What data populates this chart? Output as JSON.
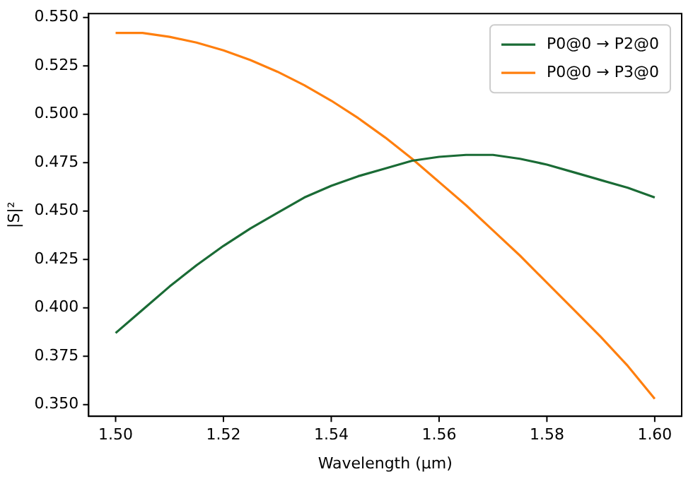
{
  "chart_data": {
    "type": "line",
    "xlabel": "Wavelength (µm)",
    "ylabel": "|S|²",
    "x": [
      1.5,
      1.505,
      1.51,
      1.515,
      1.52,
      1.525,
      1.53,
      1.535,
      1.54,
      1.545,
      1.55,
      1.555,
      1.56,
      1.565,
      1.57,
      1.575,
      1.58,
      1.585,
      1.59,
      1.595,
      1.6
    ],
    "series": [
      {
        "name": "P0@0 → P2@0",
        "color": "#1a6b35",
        "values": [
          0.387,
          0.399,
          0.411,
          0.422,
          0.432,
          0.441,
          0.449,
          0.457,
          0.463,
          0.468,
          0.472,
          0.476,
          0.478,
          0.479,
          0.479,
          0.477,
          0.474,
          0.47,
          0.466,
          0.462,
          0.457
        ]
      },
      {
        "name": "P0@0 → P3@0",
        "color": "#ff7f0e",
        "values": [
          0.542,
          0.542,
          0.54,
          0.537,
          0.533,
          0.528,
          0.522,
          0.515,
          0.507,
          0.498,
          0.488,
          0.477,
          0.465,
          0.453,
          0.44,
          0.427,
          0.413,
          0.399,
          0.385,
          0.37,
          0.353
        ]
      }
    ],
    "xlim": [
      1.495,
      1.605
    ],
    "xticks": [
      {
        "value": 1.5,
        "label": "1.50"
      },
      {
        "value": 1.52,
        "label": "1.52"
      },
      {
        "value": 1.54,
        "label": "1.54"
      },
      {
        "value": 1.56,
        "label": "1.56"
      },
      {
        "value": 1.58,
        "label": "1.58"
      },
      {
        "value": 1.6,
        "label": "1.60"
      }
    ],
    "ylim": [
      0.344,
      0.552
    ],
    "yticks": [
      {
        "value": 0.35,
        "label": "0.350"
      },
      {
        "value": 0.375,
        "label": "0.375"
      },
      {
        "value": 0.4,
        "label": "0.400"
      },
      {
        "value": 0.425,
        "label": "0.425"
      },
      {
        "value": 0.45,
        "label": "0.450"
      },
      {
        "value": 0.475,
        "label": "0.475"
      },
      {
        "value": 0.5,
        "label": "0.500"
      },
      {
        "value": 0.525,
        "label": "0.525"
      },
      {
        "value": 0.55,
        "label": "0.550"
      }
    ],
    "grid": false,
    "legend": "top right",
    "marker": "none",
    "line_style": "solid"
  }
}
